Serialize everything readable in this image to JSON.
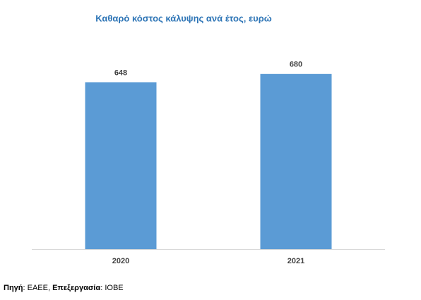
{
  "chart_data": {
    "type": "bar",
    "title": "Καθαρό κόστος κάλυψης ανά έτος, ευρώ",
    "categories": [
      "2020",
      "2021"
    ],
    "values": [
      648,
      680
    ],
    "color": "#5b9bd5"
  },
  "source": [
    {
      "text": "Πηγή",
      "bold": true
    },
    {
      "text": ": ΕΑΕΕ, ",
      "bold": false
    },
    {
      "text": "Επεξεργασία",
      "bold": true
    },
    {
      "text": ": ΙΟΒΕ",
      "bold": false
    }
  ]
}
